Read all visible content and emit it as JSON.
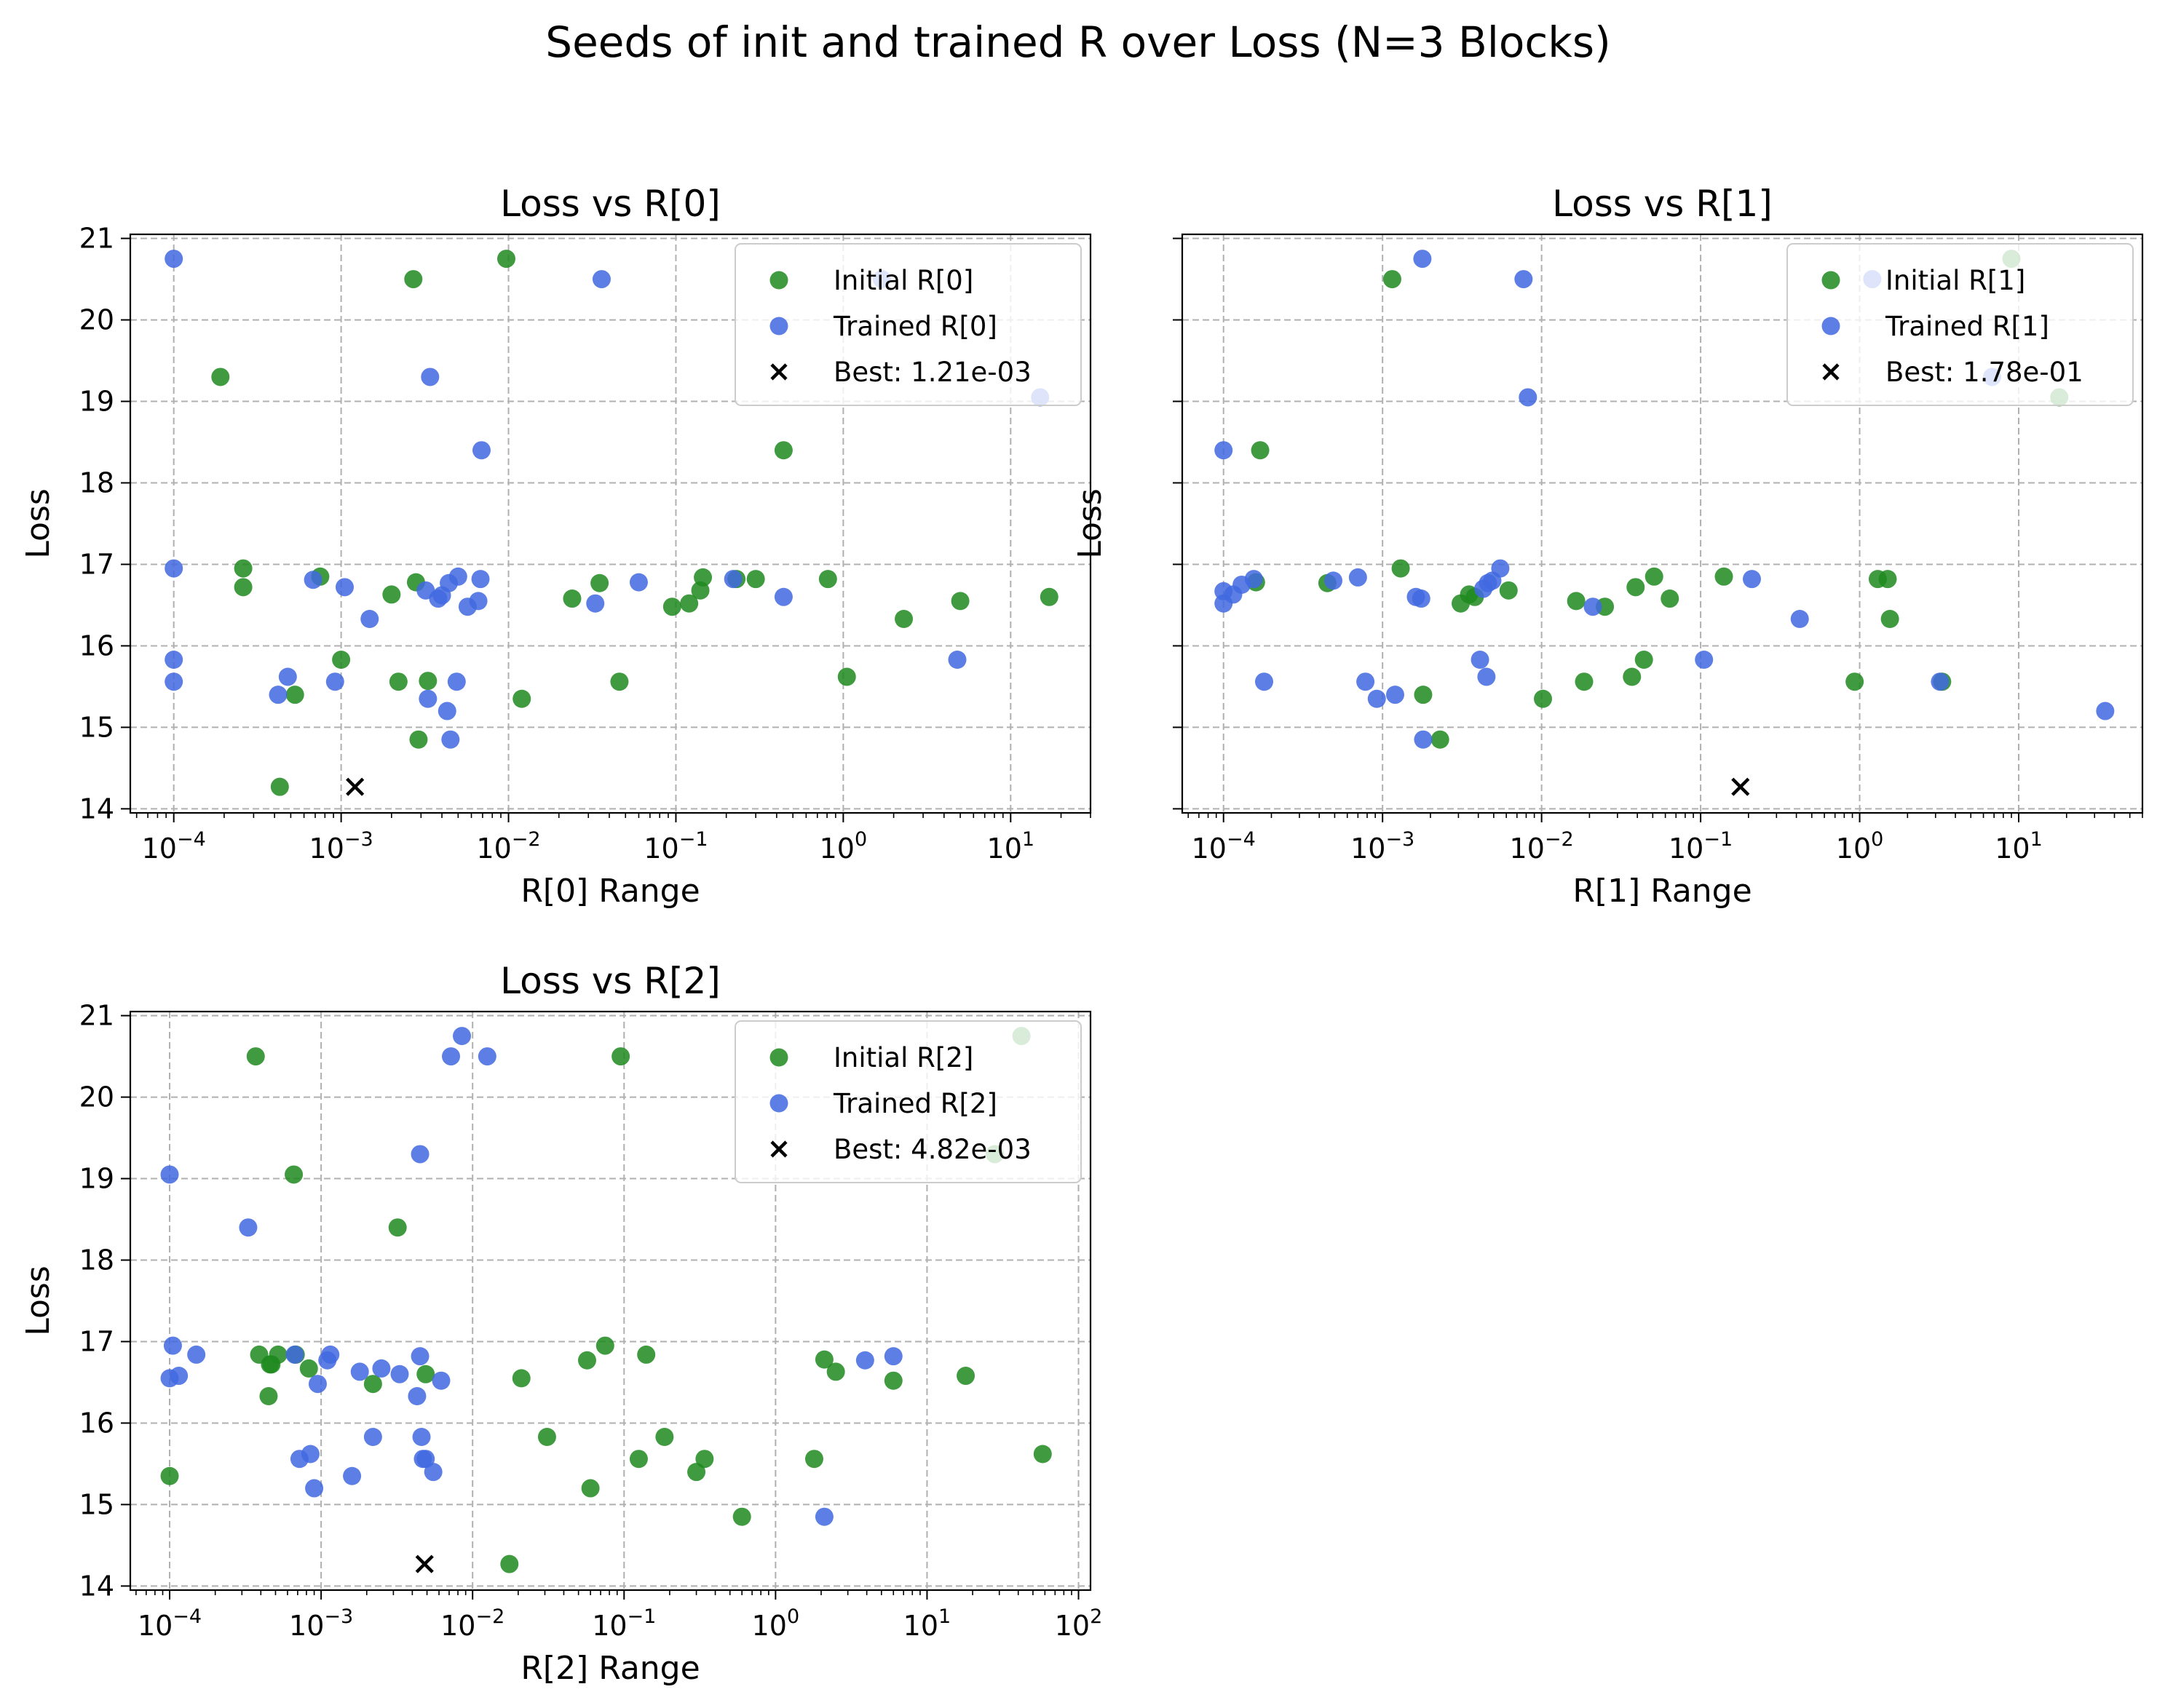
{
  "figure": {
    "suptitle": "Seeds of init and trained R over Loss (N=3 Blocks)"
  },
  "colors": {
    "initial": "#1f8a1f",
    "trained": "#4169e1",
    "best": "#000000",
    "grid": "#b0b0b0"
  },
  "chart_data": [
    {
      "type": "scatter",
      "title": "Loss vs R[0]",
      "xlabel": "R[0] Range",
      "ylabel": "Loss",
      "xscale": "log",
      "xlim": [
        5.5e-05,
        30
      ],
      "ylim": [
        13.95,
        21.05
      ],
      "xticks": [
        {
          "v": 0.0001,
          "e": "−4"
        },
        {
          "v": 0.001,
          "e": "−3"
        },
        {
          "v": 0.01,
          "e": "−2"
        },
        {
          "v": 0.1,
          "e": "−1"
        },
        {
          "v": 1,
          "e": "0"
        },
        {
          "v": 10,
          "e": "1"
        }
      ],
      "yticks": [
        14,
        15,
        16,
        17,
        18,
        19,
        20,
        21
      ],
      "grid": true,
      "legend_position": "upper-right",
      "legend": [
        "Initial R[0]",
        "Trained R[0]",
        "Best: 1.21e-03"
      ],
      "series": [
        {
          "name": "Initial R[0]",
          "x": [
            0.00019,
            0.00026,
            0.00026,
            0.00043,
            0.00053,
            0.00075,
            0.001,
            0.002,
            0.0022,
            0.0027,
            0.0028,
            0.0029,
            0.0033,
            0.0097,
            0.012,
            0.024,
            0.035,
            0.046,
            0.095,
            0.12,
            0.14,
            0.145,
            0.23,
            0.3,
            0.44,
            0.81,
            1.05,
            2.3,
            5.0,
            17
          ],
          "y": [
            19.3,
            16.95,
            16.72,
            14.27,
            15.4,
            16.85,
            15.83,
            16.63,
            15.56,
            20.5,
            16.78,
            14.85,
            15.57,
            20.75,
            15.35,
            16.58,
            16.77,
            15.56,
            16.48,
            16.52,
            16.68,
            16.84,
            16.82,
            16.82,
            18.4,
            16.82,
            15.62,
            16.33,
            16.55,
            16.6
          ]
        },
        {
          "name": "Trained R[0]",
          "x": [
            0.0001,
            0.0001,
            0.0001,
            0.0001,
            0.00042,
            0.00048,
            0.00068,
            0.00092,
            0.00105,
            0.00148,
            0.0032,
            0.0033,
            0.0034,
            0.0038,
            0.004,
            0.0043,
            0.0044,
            0.0045,
            0.0049,
            0.005,
            0.0057,
            0.0066,
            0.0068,
            0.0069,
            0.033,
            0.036,
            0.06,
            0.22,
            0.44,
            1.7,
            4.8,
            15
          ],
          "y": [
            20.75,
            16.95,
            15.83,
            15.56,
            15.4,
            15.62,
            16.81,
            15.56,
            16.72,
            16.33,
            16.68,
            15.35,
            19.3,
            16.58,
            16.62,
            15.2,
            16.77,
            14.85,
            15.56,
            16.85,
            16.48,
            16.55,
            16.82,
            18.4,
            16.52,
            20.5,
            16.78,
            16.82,
            16.6,
            20.5,
            15.83,
            19.05
          ]
        }
      ],
      "best": {
        "label": "Best: 1.21e-03",
        "x": 0.00121,
        "y": 14.27
      }
    },
    {
      "type": "scatter",
      "title": "Loss vs R[1]",
      "xlabel": "R[1] Range",
      "ylabel": "Loss",
      "xscale": "log",
      "xlim": [
        5.5e-05,
        60
      ],
      "ylim": [
        13.95,
        21.05
      ],
      "xticks": [
        {
          "v": 0.0001,
          "e": "−4"
        },
        {
          "v": 0.001,
          "e": "−3"
        },
        {
          "v": 0.01,
          "e": "−2"
        },
        {
          "v": 0.1,
          "e": "−1"
        },
        {
          "v": 1,
          "e": "0"
        },
        {
          "v": 10,
          "e": "1"
        }
      ],
      "yticks": [
        14,
        15,
        16,
        17,
        18,
        19,
        20,
        21
      ],
      "grid": true,
      "legend_position": "upper-right",
      "legend": [
        "Initial R[1]",
        "Trained R[1]",
        "Best: 1.78e-01"
      ],
      "series": [
        {
          "name": "Initial R[1]",
          "x": [
            0.00016,
            0.00017,
            0.00045,
            0.00115,
            0.0013,
            0.0018,
            0.0023,
            0.0031,
            0.0035,
            0.0038,
            0.0062,
            0.0102,
            0.0165,
            0.0185,
            0.025,
            0.037,
            0.039,
            0.044,
            0.051,
            0.064,
            0.14,
            0.93,
            1.3,
            1.5,
            1.55,
            3.3,
            9.0,
            18
          ],
          "y": [
            16.78,
            18.4,
            16.77,
            20.5,
            16.95,
            15.4,
            14.85,
            16.52,
            16.63,
            16.6,
            16.68,
            15.35,
            16.55,
            15.56,
            16.48,
            15.62,
            16.72,
            15.83,
            16.85,
            16.58,
            16.85,
            15.56,
            16.82,
            16.82,
            16.33,
            15.56,
            20.75,
            19.05
          ]
        },
        {
          "name": "Trained R[1]",
          "x": [
            0.0001,
            0.0001,
            0.0001,
            0.000115,
            0.00013,
            0.000155,
            0.00018,
            0.00049,
            0.0007,
            0.00078,
            0.00092,
            0.0012,
            0.00162,
            0.00175,
            0.00178,
            0.0018,
            0.0041,
            0.0043,
            0.0045,
            0.0046,
            0.0049,
            0.0055,
            0.0077,
            0.0082,
            0.021,
            0.105,
            0.21,
            0.42,
            1.2,
            3.2,
            6.8,
            35
          ],
          "y": [
            18.4,
            16.67,
            16.52,
            16.63,
            16.75,
            16.82,
            15.56,
            16.8,
            16.84,
            15.56,
            15.35,
            15.4,
            16.6,
            16.58,
            20.75,
            14.85,
            15.83,
            16.7,
            15.62,
            16.77,
            16.8,
            16.95,
            20.5,
            19.05,
            16.48,
            15.83,
            16.82,
            16.33,
            20.5,
            15.56,
            19.3,
            15.2
          ]
        }
      ],
      "best": {
        "label": "Best: 1.78e-01",
        "x": 0.178,
        "y": 14.27
      }
    },
    {
      "type": "scatter",
      "title": "Loss vs R[2]",
      "xlabel": "R[2] Range",
      "ylabel": "Loss",
      "xscale": "log",
      "xlim": [
        5.5e-05,
        120
      ],
      "ylim": [
        13.95,
        21.05
      ],
      "xticks": [
        {
          "v": 0.0001,
          "e": "−4"
        },
        {
          "v": 0.001,
          "e": "−3"
        },
        {
          "v": 0.01,
          "e": "−2"
        },
        {
          "v": 0.1,
          "e": "−1"
        },
        {
          "v": 1,
          "e": "0"
        },
        {
          "v": 10,
          "e": "1"
        },
        {
          "v": 100,
          "e": "2"
        }
      ],
      "yticks": [
        14,
        15,
        16,
        17,
        18,
        19,
        20,
        21
      ],
      "grid": true,
      "legend_position": "upper-right",
      "legend": [
        "Initial R[2]",
        "Trained R[2]",
        "Best: 4.82e-03"
      ],
      "series": [
        {
          "name": "Initial R[2]",
          "x": [
            0.0001,
            0.00037,
            0.00039,
            0.00045,
            0.00046,
            0.00047,
            0.00052,
            0.00066,
            0.00068,
            0.00083,
            0.0022,
            0.0032,
            0.0049,
            0.0175,
            0.021,
            0.031,
            0.057,
            0.06,
            0.075,
            0.095,
            0.125,
            0.14,
            0.185,
            0.3,
            0.34,
            0.6,
            1.8,
            2.1,
            2.5,
            6.0,
            18,
            28,
            42,
            58
          ],
          "y": [
            15.35,
            20.5,
            16.84,
            16.33,
            16.72,
            16.72,
            16.84,
            19.05,
            16.84,
            16.67,
            16.48,
            18.4,
            16.6,
            14.27,
            16.55,
            15.83,
            16.77,
            15.2,
            16.95,
            20.5,
            15.56,
            16.84,
            15.83,
            15.4,
            15.56,
            14.85,
            15.56,
            16.78,
            16.63,
            16.52,
            16.58,
            19.3,
            20.75,
            15.62
          ]
        },
        {
          "name": "Trained R[2]",
          "x": [
            0.0001,
            0.0001,
            0.000105,
            0.000115,
            0.00015,
            0.00033,
            0.00067,
            0.00072,
            0.00085,
            0.0009,
            0.00095,
            0.0011,
            0.00115,
            0.0016,
            0.0018,
            0.0022,
            0.0025,
            0.0033,
            0.0043,
            0.0045,
            0.0045,
            0.0046,
            0.0047,
            0.0049,
            0.0055,
            0.0062,
            0.0072,
            0.0085,
            0.0125,
            2.1,
            3.9,
            6.0
          ],
          "y": [
            19.05,
            16.55,
            16.95,
            16.58,
            16.84,
            18.4,
            16.84,
            15.56,
            15.62,
            15.2,
            16.48,
            16.77,
            16.84,
            15.35,
            16.63,
            15.83,
            16.67,
            16.6,
            16.33,
            16.82,
            19.3,
            15.83,
            15.56,
            15.56,
            15.4,
            16.52,
            20.5,
            20.75,
            20.5,
            14.85,
            16.77,
            16.82
          ]
        }
      ],
      "best": {
        "label": "Best: 4.82e-03",
        "x": 0.00482,
        "y": 14.27
      }
    }
  ]
}
